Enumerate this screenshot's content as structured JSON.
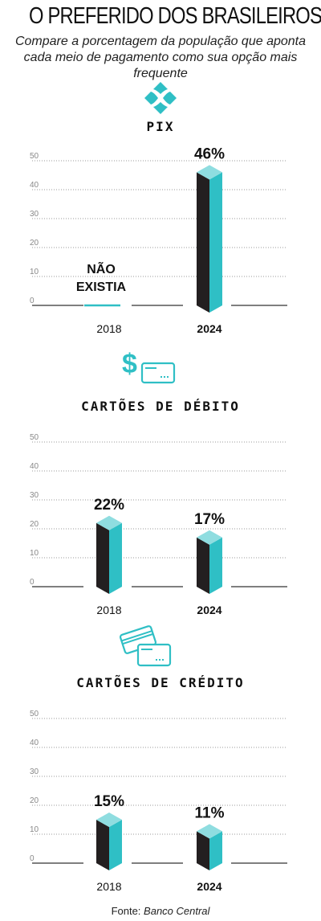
{
  "title": "O PREFERIDO DOS BRASILEIROS",
  "subtitle": "Compare a porcentagem da população que aponta cada meio de pagamento como sua opção mais frequente",
  "source_label": "Fonte:",
  "source_name": "Banco Central",
  "colors": {
    "bar_dark": "#231f20",
    "bar_teal": "#2fbfc5",
    "bar_top": "#8fdde0",
    "grid": "#999999"
  },
  "chart_data": [
    {
      "type": "bar",
      "title": "PIX",
      "icon": "pix-icon",
      "categories": [
        "2018",
        "2024"
      ],
      "values": [
        null,
        46
      ],
      "value_labels": [
        "NÃO EXISTIA",
        "46%"
      ],
      "ylim": [
        0,
        50
      ],
      "yticks": [
        0,
        10,
        20,
        30,
        40,
        50
      ]
    },
    {
      "type": "bar",
      "title": "CARTÕES DE DÉBITO",
      "icon": "debit-card-icon",
      "categories": [
        "2018",
        "2024"
      ],
      "values": [
        22,
        17
      ],
      "value_labels": [
        "22%",
        "17%"
      ],
      "ylim": [
        0,
        50
      ],
      "yticks": [
        0,
        10,
        20,
        30,
        40,
        50
      ]
    },
    {
      "type": "bar",
      "title": "CARTÕES DE CRÉDITO",
      "icon": "credit-cards-icon",
      "categories": [
        "2018",
        "2024"
      ],
      "values": [
        15,
        11
      ],
      "value_labels": [
        "15%",
        "11%"
      ],
      "ylim": [
        0,
        50
      ],
      "yticks": [
        0,
        10,
        20,
        30,
        40,
        50
      ]
    }
  ]
}
